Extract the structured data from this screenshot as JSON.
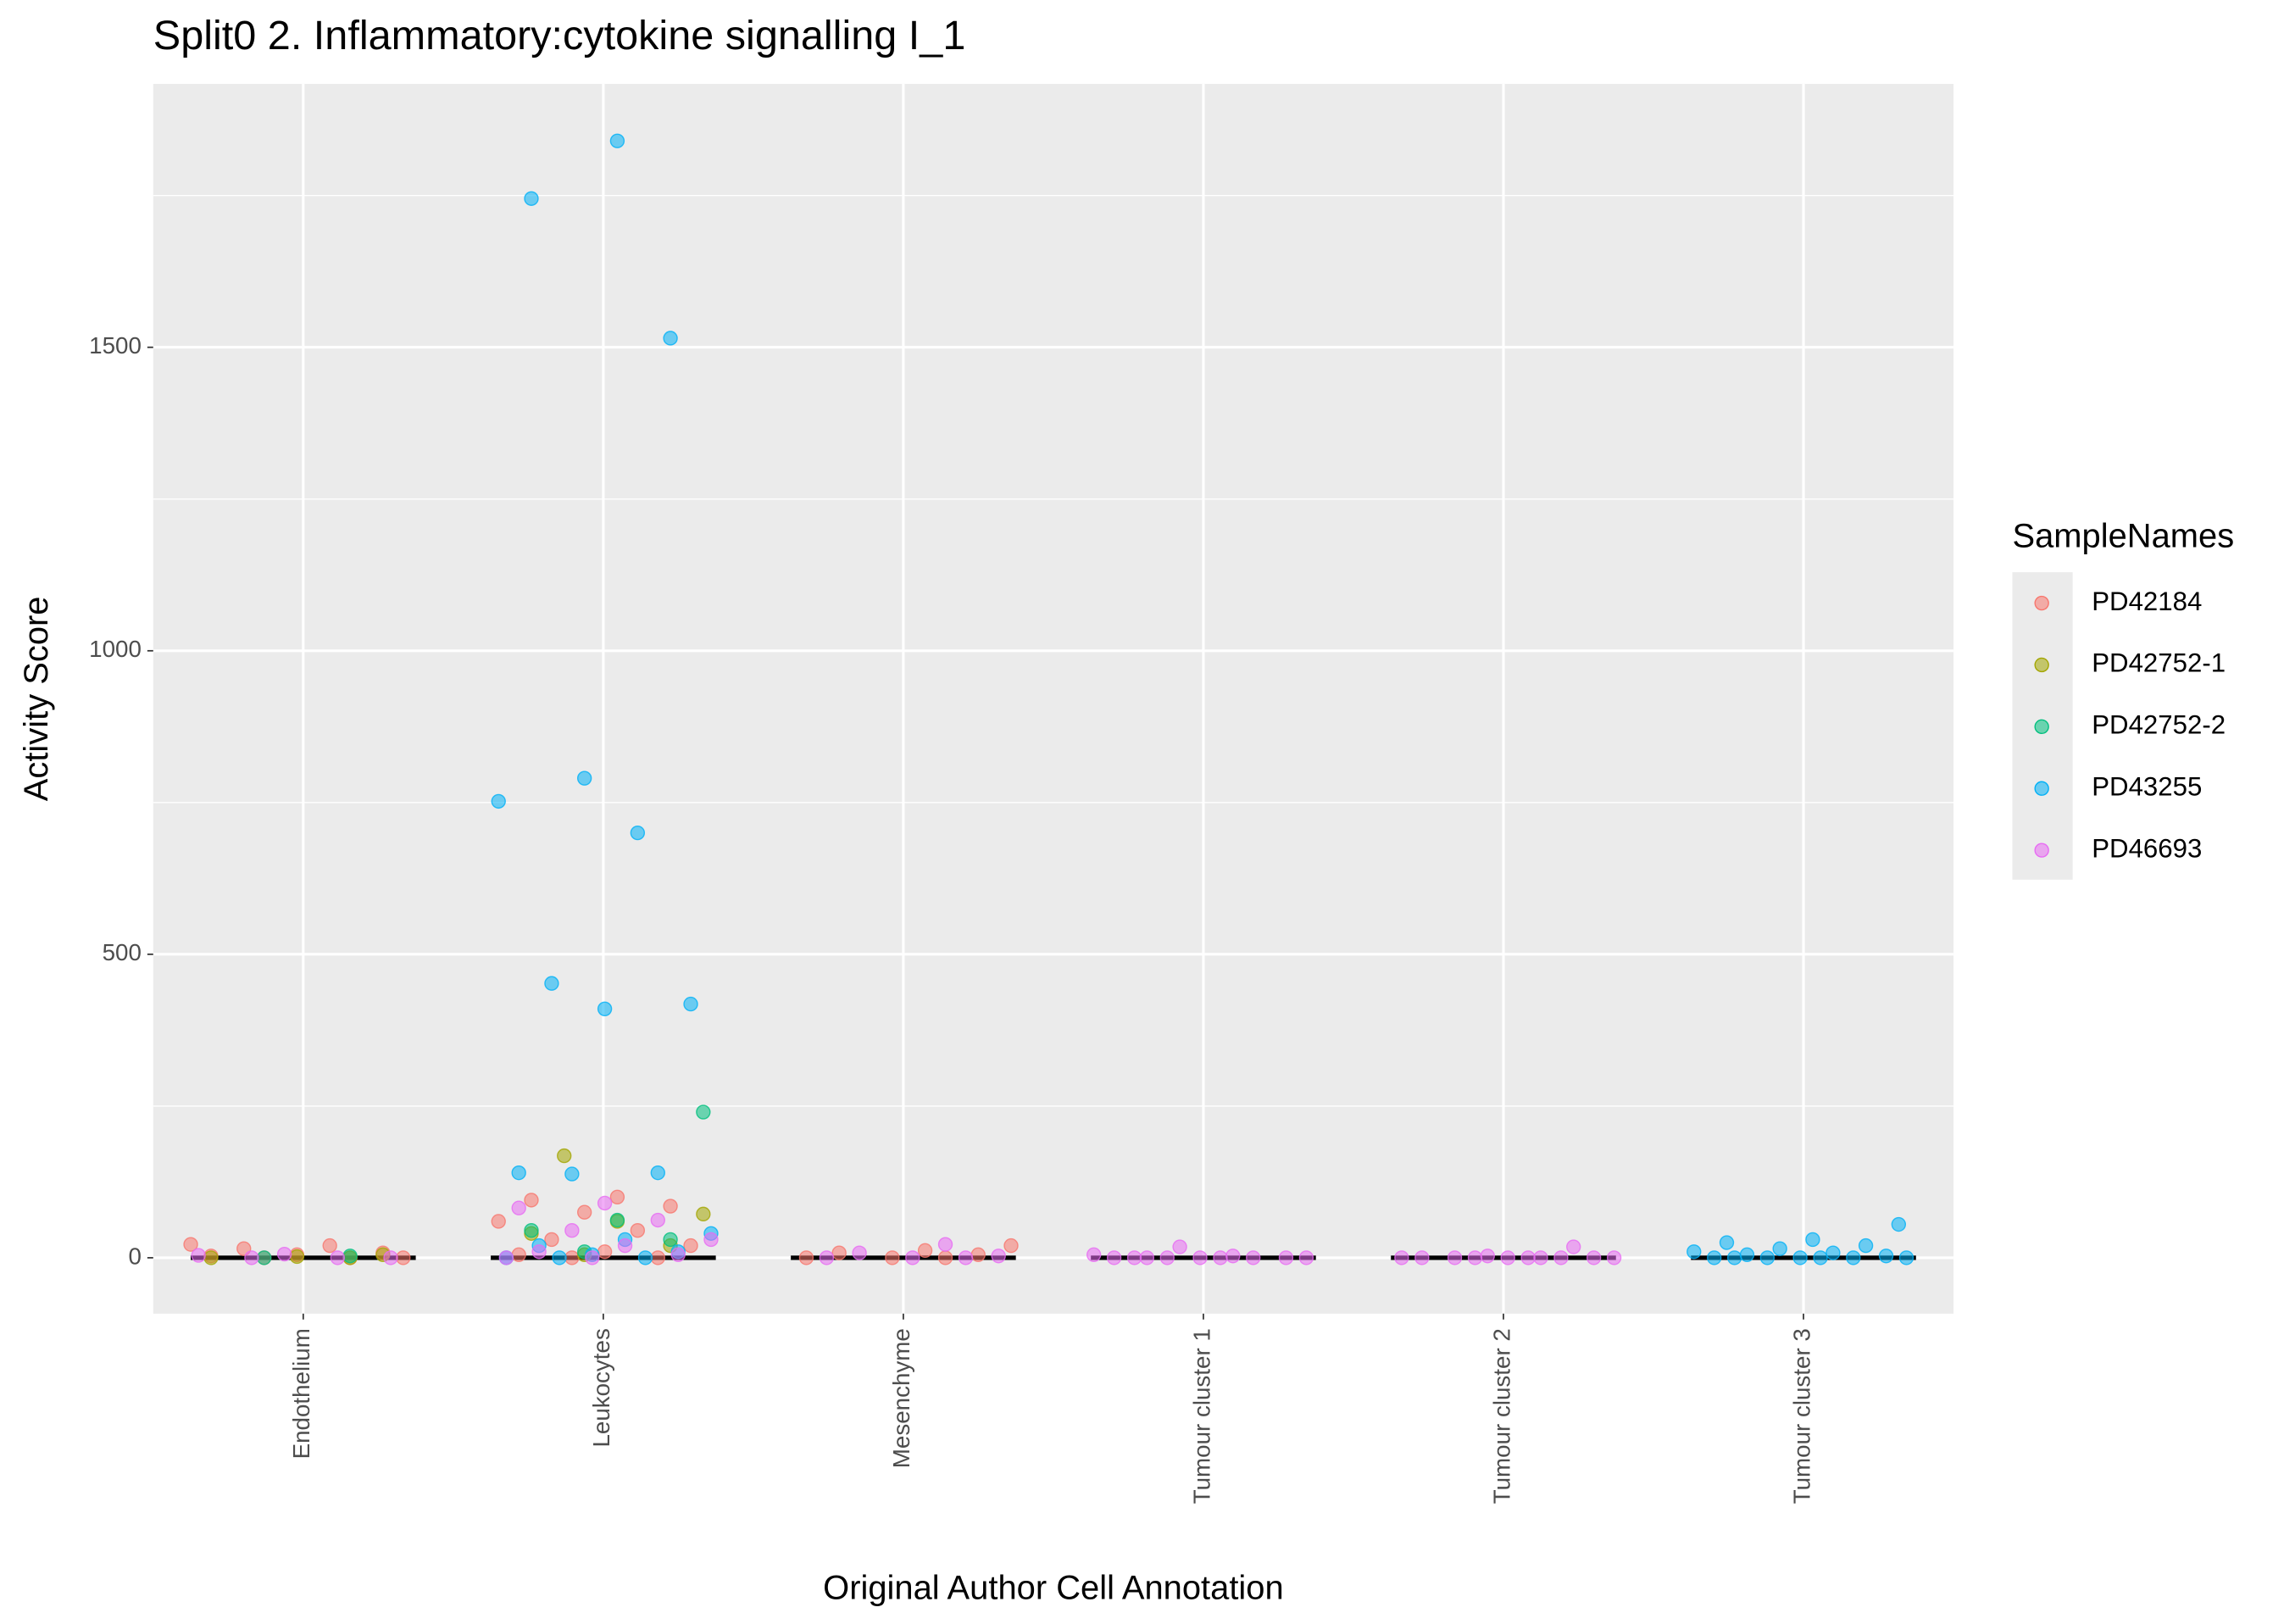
{
  "chart_data": {
    "type": "strip",
    "title": "Split0 2. Inflammatory:cytokine signalling I_1",
    "x_label": "Original Author Cell Annotation",
    "y_label": "Activity Score",
    "legend_title": "SampleNames",
    "legend_position": "right",
    "grid": true,
    "categories": [
      "Endothelium",
      "Leukocytes",
      "Mesenchyme",
      "Tumour cluster 1",
      "Tumour cluster 2",
      "Tumour cluster 3"
    ],
    "ylim": [
      -92,
      1934
    ],
    "yticks": [
      0,
      500,
      1000,
      1500
    ],
    "minor_yticks": [
      250,
      750,
      1250,
      1750
    ],
    "series": [
      {
        "name": "PD42184",
        "color": "#F8766D",
        "x": [
          "Endothelium",
          "Endothelium",
          "Endothelium",
          "Endothelium",
          "Endothelium",
          "Endothelium",
          "Endothelium",
          "Endothelium",
          "Endothelium",
          "Leukocytes",
          "Leukocytes",
          "Leukocytes",
          "Leukocytes",
          "Leukocytes",
          "Leukocytes",
          "Leukocytes",
          "Leukocytes",
          "Leukocytes",
          "Leukocytes",
          "Leukocytes",
          "Leukocytes",
          "Mesenchyme",
          "Mesenchyme",
          "Mesenchyme",
          "Mesenchyme",
          "Mesenchyme",
          "Mesenchyme",
          "Mesenchyme"
        ],
        "values": [
          22,
          20,
          15,
          8,
          5,
          3,
          0,
          0,
          0,
          100,
          95,
          85,
          75,
          60,
          45,
          30,
          20,
          10,
          5,
          0,
          0,
          20,
          12,
          8,
          5,
          0,
          0,
          0
        ]
      },
      {
        "name": "PD42752-1",
        "color": "#A3A500",
        "x": [
          "Endothelium",
          "Endothelium",
          "Endothelium",
          "Endothelium",
          "Leukocytes",
          "Leukocytes",
          "Leukocytes",
          "Leukocytes",
          "Leukocytes",
          "Leukocytes"
        ],
        "values": [
          5,
          2,
          0,
          0,
          168,
          72,
          60,
          40,
          20,
          5
        ]
      },
      {
        "name": "PD42752-2",
        "color": "#00BF7D",
        "x": [
          "Endothelium",
          "Endothelium",
          "Leukocytes",
          "Leukocytes",
          "Leukocytes",
          "Leukocytes",
          "Leukocytes"
        ],
        "values": [
          3,
          0,
          240,
          62,
          45,
          30,
          10
        ]
      },
      {
        "name": "PD43255",
        "color": "#00B0F6",
        "x": [
          "Leukocytes",
          "Leukocytes",
          "Leukocytes",
          "Leukocytes",
          "Leukocytes",
          "Leukocytes",
          "Leukocytes",
          "Leukocytes",
          "Leukocytes",
          "Leukocytes",
          "Leukocytes",
          "Leukocytes",
          "Leukocytes",
          "Leukocytes",
          "Leukocytes",
          "Leukocytes",
          "Leukocytes",
          "Leukocytes",
          "Leukocytes",
          "Leukocytes",
          "Tumour cluster 3",
          "Tumour cluster 3",
          "Tumour cluster 3",
          "Tumour cluster 3",
          "Tumour cluster 3",
          "Tumour cluster 3",
          "Tumour cluster 3",
          "Tumour cluster 3",
          "Tumour cluster 3",
          "Tumour cluster 3",
          "Tumour cluster 3",
          "Tumour cluster 3",
          "Tumour cluster 3",
          "Tumour cluster 3",
          "Tumour cluster 3",
          "Tumour cluster 3"
        ],
        "values": [
          1840,
          1745,
          1515,
          790,
          752,
          700,
          452,
          418,
          410,
          140,
          140,
          138,
          40,
          30,
          20,
          10,
          5,
          0,
          0,
          0,
          55,
          30,
          25,
          20,
          15,
          10,
          8,
          5,
          3,
          0,
          0,
          0,
          0,
          0,
          0,
          0
        ]
      },
      {
        "name": "PD46693",
        "color": "#E76BF3",
        "x": [
          "Endothelium",
          "Endothelium",
          "Endothelium",
          "Endothelium",
          "Endothelium",
          "Leukocytes",
          "Leukocytes",
          "Leukocytes",
          "Leukocytes",
          "Leukocytes",
          "Leukocytes",
          "Leukocytes",
          "Leukocytes",
          "Leukocytes",
          "Leukocytes",
          "Mesenchyme",
          "Mesenchyme",
          "Mesenchyme",
          "Mesenchyme",
          "Mesenchyme",
          "Mesenchyme",
          "Tumour cluster 1",
          "Tumour cluster 1",
          "Tumour cluster 1",
          "Tumour cluster 1",
          "Tumour cluster 1",
          "Tumour cluster 1",
          "Tumour cluster 1",
          "Tumour cluster 1",
          "Tumour cluster 1",
          "Tumour cluster 1",
          "Tumour cluster 1",
          "Tumour cluster 1",
          "Tumour cluster 2",
          "Tumour cluster 2",
          "Tumour cluster 2",
          "Tumour cluster 2",
          "Tumour cluster 2",
          "Tumour cluster 2",
          "Tumour cluster 2",
          "Tumour cluster 2",
          "Tumour cluster 2",
          "Tumour cluster 2",
          "Tumour cluster 2",
          "Tumour cluster 2"
        ],
        "values": [
          6,
          4,
          0,
          0,
          0,
          90,
          82,
          62,
          45,
          30,
          20,
          10,
          5,
          0,
          0,
          22,
          8,
          3,
          0,
          0,
          0,
          18,
          5,
          3,
          0,
          0,
          0,
          0,
          0,
          0,
          0,
          0,
          0,
          18,
          3,
          0,
          0,
          0,
          0,
          0,
          0,
          0,
          0,
          0,
          0
        ]
      }
    ]
  }
}
